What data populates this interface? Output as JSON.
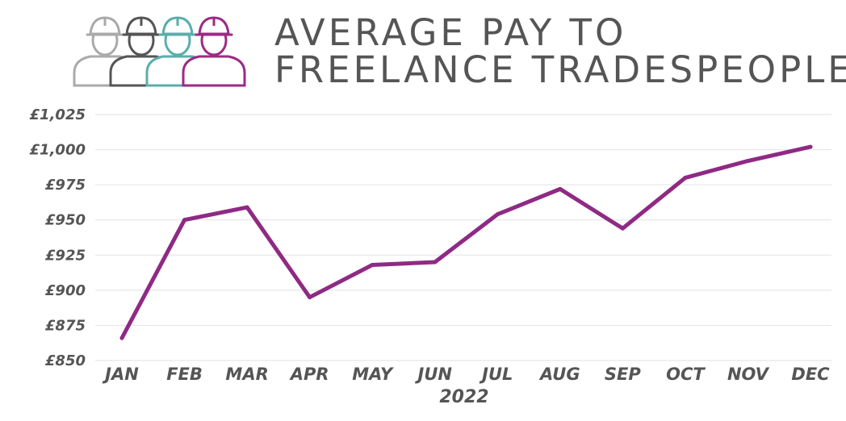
{
  "title": {
    "line1": "AVERAGE PAY TO",
    "line2": "FREELANCE TRADESPEOPLE"
  },
  "logo": {
    "icons": [
      {
        "name": "worker-icon",
        "color": "#aaaaaa"
      },
      {
        "name": "worker-icon",
        "color": "#555555"
      },
      {
        "name": "worker-icon",
        "color": "#5aaeab"
      },
      {
        "name": "worker-icon",
        "color": "#9c2a86"
      }
    ]
  },
  "chart_data": {
    "type": "line",
    "title": "AVERAGE PAY TO FREELANCE TRADESPEOPLE",
    "xlabel": "2022",
    "ylabel": "",
    "categories": [
      "JAN",
      "FEB",
      "MAR",
      "APR",
      "MAY",
      "JUN",
      "JUL",
      "AUG",
      "SEP",
      "OCT",
      "NOV",
      "DEC"
    ],
    "series": [
      {
        "color": "#8f2a84",
        "values": [
          866,
          950,
          959,
          895,
          918,
          920,
          954,
          972,
          944,
          980,
          992,
          1002
        ]
      }
    ],
    "ylim": [
      850,
      1025
    ],
    "yticks": [
      850,
      875,
      900,
      925,
      950,
      975,
      1000,
      1025
    ],
    "ytick_labels": [
      "£850",
      "£875",
      "£900",
      "£925",
      "£950",
      "£975",
      "£1,000",
      "£1,025"
    ],
    "grid": true,
    "legend": "none"
  }
}
